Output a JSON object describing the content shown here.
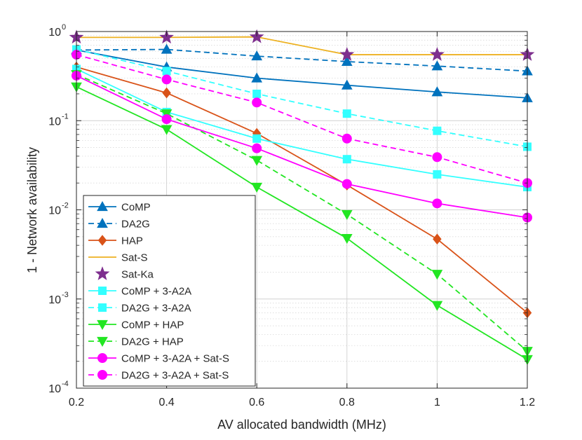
{
  "chart_data": {
    "type": "line",
    "title": "",
    "xlabel": "AV allocated bandwidth (MHz)",
    "ylabel": "1 - Network availability",
    "xscale": "linear",
    "yscale": "log",
    "xlim": [
      0.2,
      1.2
    ],
    "ylim": [
      0.0001,
      1
    ],
    "grid": true,
    "x": [
      0.2,
      0.4,
      0.6,
      0.8,
      1.0,
      1.2
    ],
    "xticks": [
      0.2,
      0.4,
      0.6,
      0.8,
      1.0,
      1.2
    ],
    "xtick_labels": [
      "0.2",
      "0.4",
      "0.6",
      "0.8",
      "1",
      "1.2"
    ],
    "yticks": [
      0.0001,
      0.001,
      0.01,
      0.1,
      1
    ],
    "ytick_labels": [
      {
        "base": "10",
        "exp": "-4"
      },
      {
        "base": "10",
        "exp": "-3"
      },
      {
        "base": "10",
        "exp": "-2"
      },
      {
        "base": "10",
        "exp": "-1"
      },
      {
        "base": "10",
        "exp": "0"
      }
    ],
    "legend_position": "lower-left",
    "series": [
      {
        "name": "CoMP",
        "color": "#0072BD",
        "dash": "solid",
        "marker": "triangle-up",
        "values": [
          0.62,
          0.4,
          0.3,
          0.25,
          0.21,
          0.18
        ]
      },
      {
        "name": "DA2G",
        "color": "#0072BD",
        "dash": "dashed",
        "marker": "triangle-up",
        "values": [
          0.62,
          0.63,
          0.53,
          0.46,
          0.41,
          0.36
        ]
      },
      {
        "name": "HAP",
        "color": "#D95319",
        "dash": "solid",
        "marker": "diamond",
        "values": [
          0.4,
          0.205,
          0.072,
          0.019,
          0.0047,
          0.0007
        ]
      },
      {
        "name": "Sat-S",
        "color": "#EDB120",
        "dash": "solid",
        "marker": "none",
        "values": [
          0.86,
          0.86,
          0.87,
          0.55,
          0.55,
          0.55
        ]
      },
      {
        "name": "Sat-Ka",
        "color": "#7E2F8E",
        "dash": "none",
        "marker": "star",
        "values": [
          0.86,
          0.86,
          0.87,
          0.55,
          0.55,
          0.55
        ]
      },
      {
        "name": "CoMP + 3-A2A",
        "color": "#33FFFF",
        "dash": "solid",
        "marker": "square",
        "values": [
          0.38,
          0.125,
          0.063,
          0.037,
          0.025,
          0.018
        ]
      },
      {
        "name": "DA2G + 3-A2A",
        "color": "#33FFFF",
        "dash": "dashed",
        "marker": "square",
        "values": [
          0.63,
          0.36,
          0.2,
          0.12,
          0.077,
          0.051
        ]
      },
      {
        "name": "CoMP + HAP",
        "color": "#22E622",
        "dash": "solid",
        "marker": "triangle-down",
        "values": [
          0.24,
          0.08,
          0.018,
          0.0048,
          0.00085,
          0.00021
        ]
      },
      {
        "name": "DA2G + HAP",
        "color": "#22E622",
        "dash": "dashed",
        "marker": "triangle-down",
        "values": [
          0.33,
          0.12,
          0.036,
          0.0089,
          0.0019,
          0.00026
        ]
      },
      {
        "name": "CoMP + 3-A2A + Sat-S",
        "color": "#FF00FF",
        "dash": "solid",
        "marker": "circle",
        "values": [
          0.32,
          0.104,
          0.049,
          0.0195,
          0.0118,
          0.0082
        ]
      },
      {
        "name": "DA2G + 3-A2A + Sat-S",
        "color": "#FF00FF",
        "dash": "dashed",
        "marker": "circle",
        "values": [
          0.55,
          0.29,
          0.16,
          0.063,
          0.039,
          0.02
        ]
      }
    ]
  }
}
